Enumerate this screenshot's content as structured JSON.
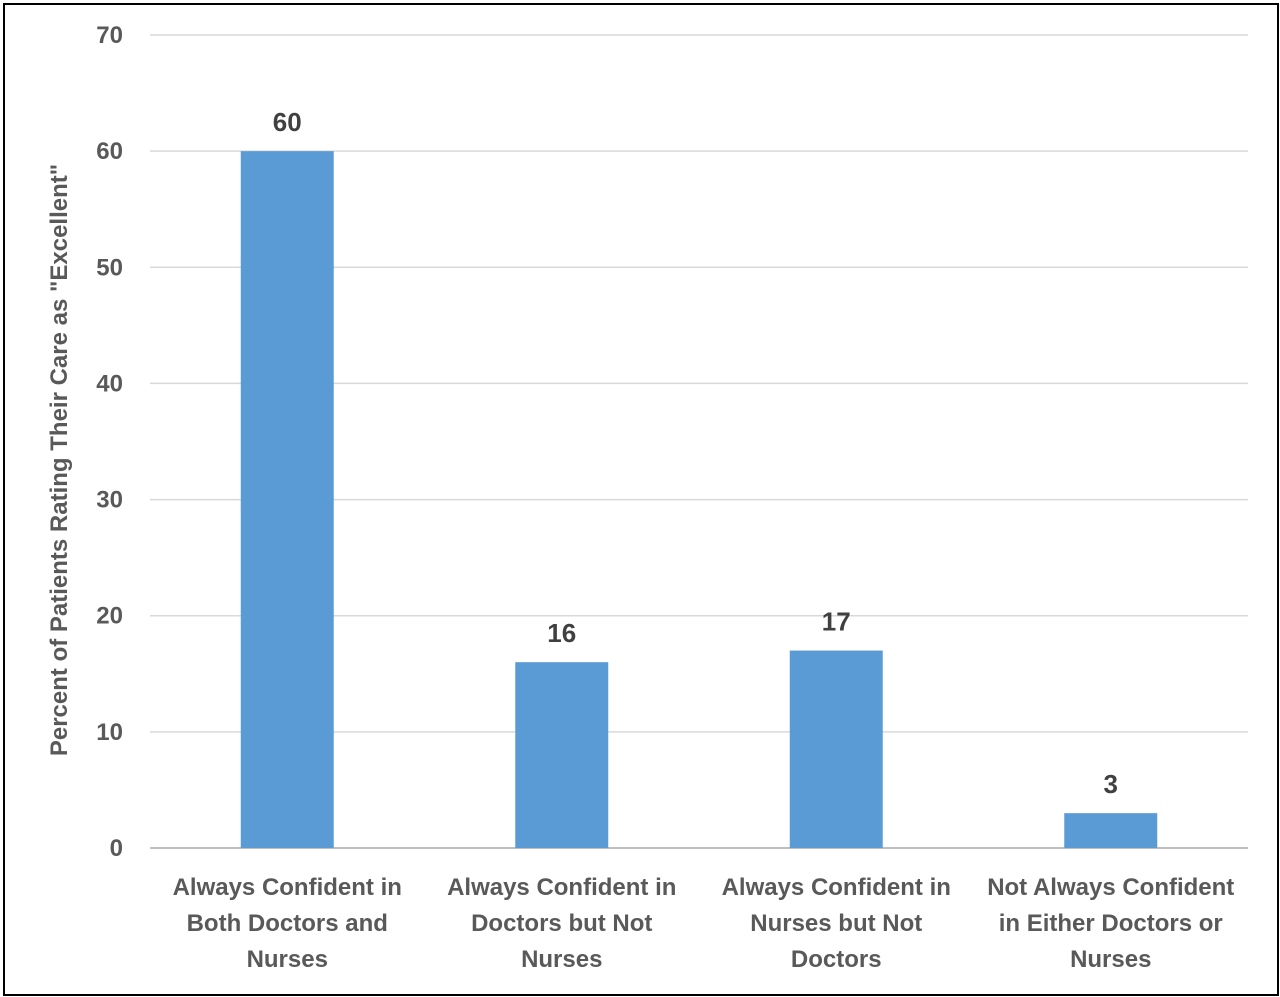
{
  "chart_data": {
    "type": "bar",
    "title": "",
    "xlabel": "",
    "ylabel": "Percent of Patients Rating Their Care as \"Excellent\"",
    "ylim": [
      0,
      70
    ],
    "yticks": [
      0,
      10,
      20,
      30,
      40,
      50,
      60,
      70
    ],
    "grid": true,
    "legend": "none",
    "bar_color": "#5B9BD5",
    "categories": [
      [
        "Always Confident in",
        "Both Doctors and",
        "Nurses"
      ],
      [
        "Always Confident in",
        "Doctors but Not",
        "Nurses"
      ],
      [
        "Always Confident in",
        "Nurses but Not",
        "Doctors"
      ],
      [
        "Not Always Confident",
        "in Either Doctors or",
        "Nurses"
      ]
    ],
    "values": [
      60,
      16,
      17,
      3
    ],
    "data_labels": [
      "60",
      "16",
      "17",
      "3"
    ]
  }
}
